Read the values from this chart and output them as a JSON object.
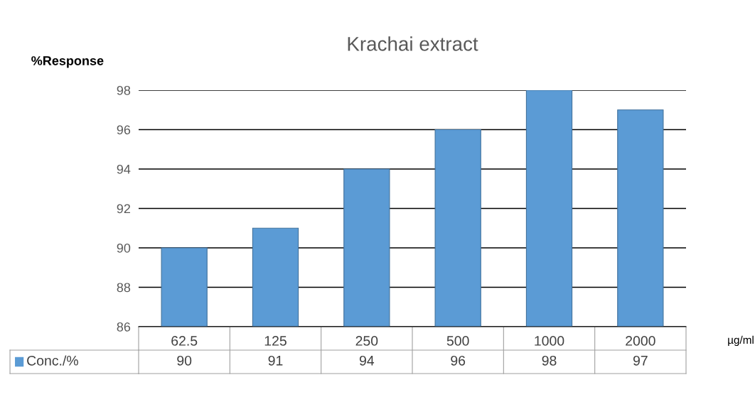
{
  "chart_data": {
    "type": "bar",
    "title": "Krachai extract",
    "ylabel": "%Response",
    "xlabel": "µg/ml",
    "categories": [
      "62.5",
      "125",
      "250",
      "500",
      "1000",
      "2000"
    ],
    "series": [
      {
        "name": "Conc./%",
        "color": "#5b9bd5",
        "values": [
          90,
          91,
          94,
          96,
          98,
          97
        ]
      }
    ],
    "ylim": [
      86,
      98
    ],
    "yticks": [
      86,
      88,
      90,
      92,
      94,
      96,
      98
    ],
    "grid": "y",
    "data_labels": true,
    "legend": "bottom"
  }
}
